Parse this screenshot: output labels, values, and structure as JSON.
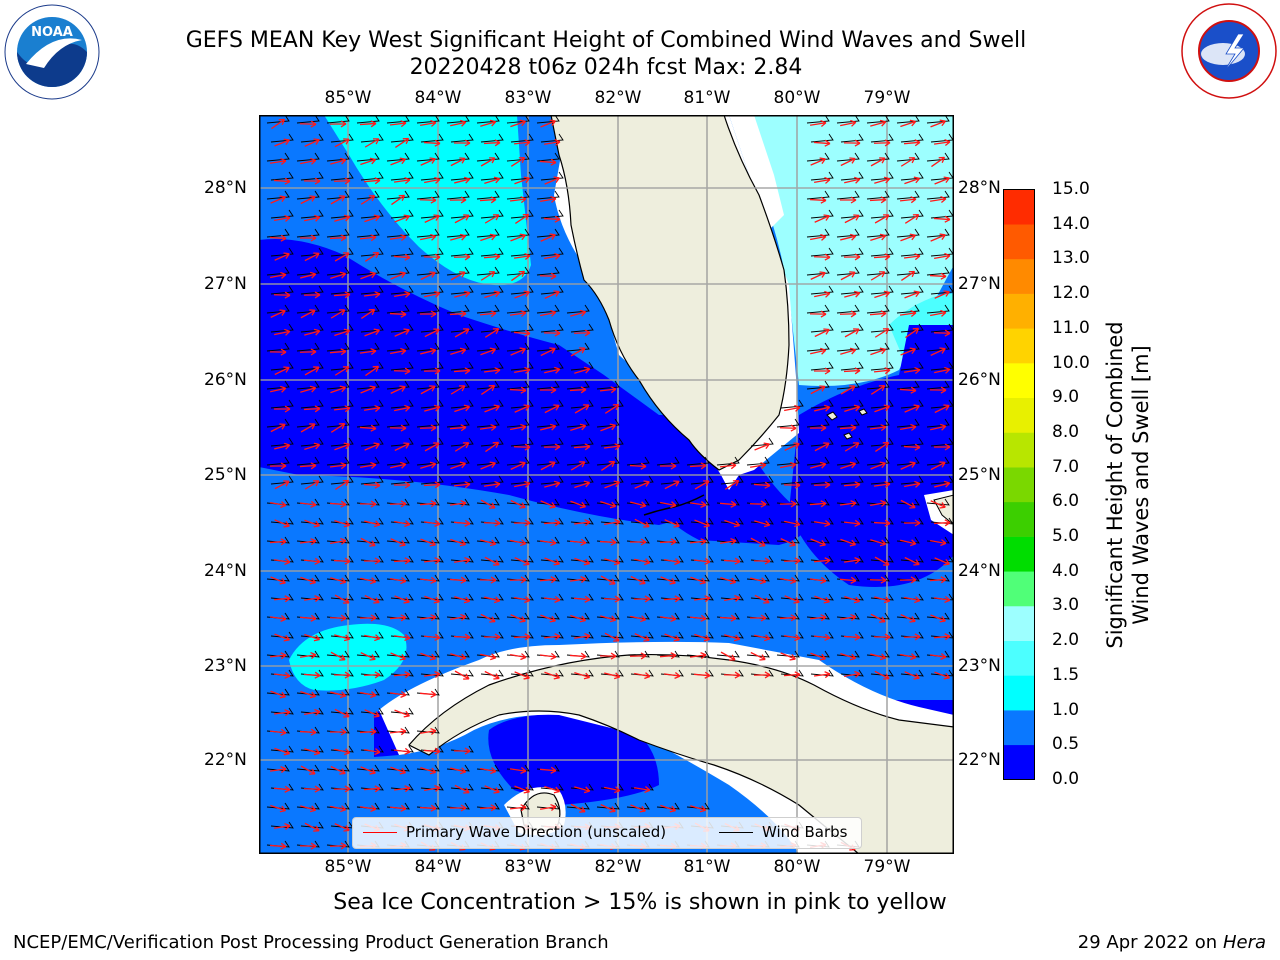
{
  "header": {
    "title_line1": "GEFS MEAN Key West Significant Height of Combined Wind Waves and Swell",
    "title_line2": "20220428 t06z 024h fcst   Max: 2.84"
  },
  "logos": {
    "noaa": "NOAA",
    "noaa_ring": "NATIONAL OCEANIC AND ATMOSPHERIC ADMINISTRATION · U.S. DEPARTMENT OF COMMERCE",
    "nws_ring": "NATIONAL WEATHER SERVICE"
  },
  "axes": {
    "longitude_labels": [
      "85°W",
      "84°W",
      "83°W",
      "82°W",
      "81°W",
      "80°W",
      "79°W"
    ],
    "latitude_labels": [
      "28°N",
      "27°N",
      "26°N",
      "25°N",
      "24°N",
      "23°N",
      "22°N"
    ]
  },
  "colorbar": {
    "label_line1": "Significant Height of Combined",
    "label_line2": "Wind Waves and Swell [m]",
    "ticks": [
      "0.0",
      "0.5",
      "1.0",
      "1.5",
      "2.0",
      "3.0",
      "4.0",
      "5.0",
      "6.0",
      "7.0",
      "8.0",
      "9.0",
      "10.0",
      "11.0",
      "12.0",
      "13.0",
      "14.0",
      "15.0"
    ],
    "colors": [
      "#0000ff",
      "#0a78ff",
      "#00ffff",
      "#4cffff",
      "#9dffff",
      "#50ff78",
      "#00dd00",
      "#3ccf00",
      "#7ad800",
      "#b8e600",
      "#e8f000",
      "#ffff00",
      "#ffd300",
      "#ffb000",
      "#ff8a00",
      "#ff5a00",
      "#ff2c00",
      "#ff0000"
    ]
  },
  "legend": {
    "wave_direction": "Primary Wave Direction (unscaled)",
    "wind_barbs": "Wind Barbs",
    "wave_color": "#ff0000",
    "barb_color": "#000000"
  },
  "subtitle": "Sea Ice Concentration > 15% is shown in pink to yellow",
  "footer": {
    "left": "NCEP/EMC/Verification Post Processing Product Generation Branch",
    "right_date": "29 Apr 2022 on",
    "right_host": "Hera"
  }
}
